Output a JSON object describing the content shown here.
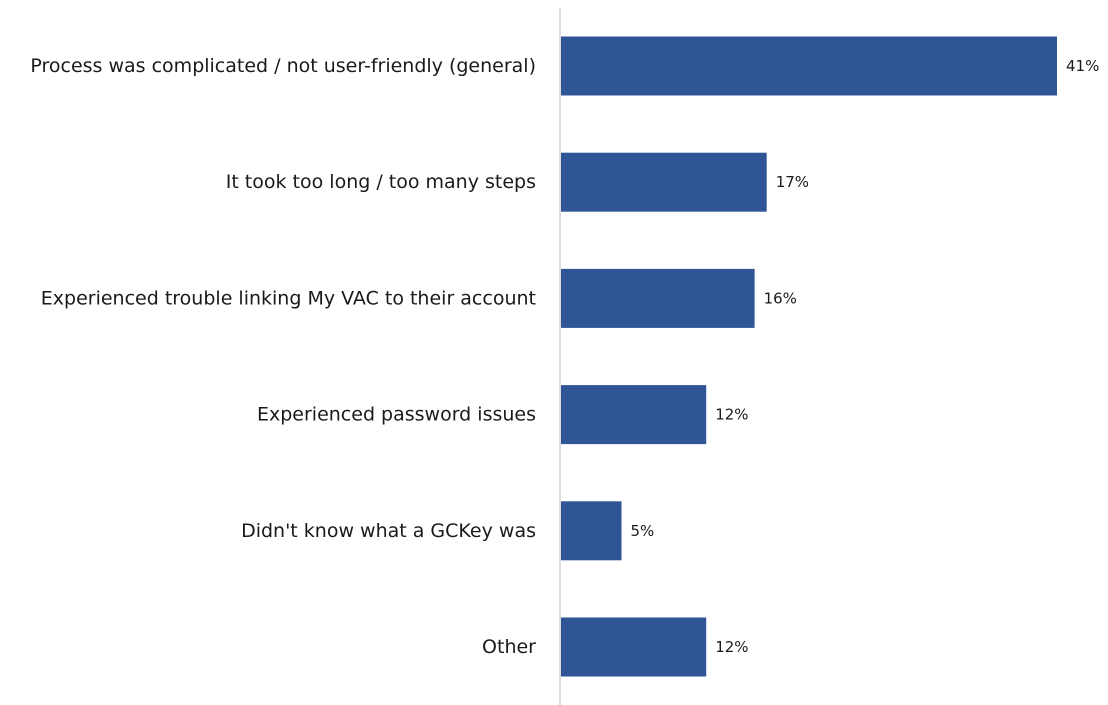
{
  "chart_data": {
    "type": "bar",
    "orientation": "horizontal",
    "categories": [
      "Process was complicated / not user-friendly (general)",
      "It took too long / too many steps",
      "Experienced trouble linking My VAC to their account",
      "Experienced password issues",
      "Didn't know what a GCKey was",
      "Other"
    ],
    "values": [
      41,
      17,
      16,
      12,
      5,
      12
    ],
    "value_labels": [
      "41%",
      "17%",
      "16%",
      "12%",
      "5%",
      "12%"
    ],
    "unit": "%",
    "xlim": [
      0,
      41
    ],
    "grid": false,
    "legend": "none",
    "bar_color": "#2f5597"
  }
}
